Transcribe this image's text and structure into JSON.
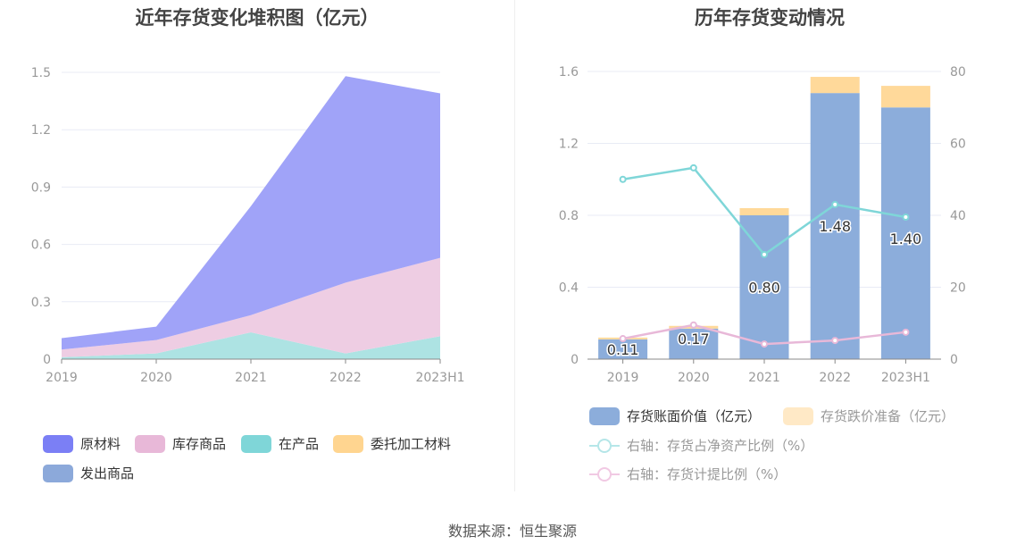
{
  "chart_data": [
    {
      "type": "area",
      "stacked": true,
      "title": "近年存货变化堆积图（亿元）",
      "categories": [
        "2019",
        "2020",
        "2021",
        "2022",
        "2023H1"
      ],
      "ylim": [
        0,
        1.5
      ],
      "yticks": [
        "0",
        "0.3",
        "0.6",
        "0.9",
        "1.2",
        "1.5"
      ],
      "series": [
        {
          "name": "在产品",
          "values": [
            0.01,
            0.03,
            0.14,
            0.03,
            0.12
          ],
          "color": "#7fd6d8",
          "fill": "#ade3e3"
        },
        {
          "name": "库存商品",
          "values": [
            0.04,
            0.07,
            0.09,
            0.37,
            0.41
          ],
          "color": "#e8b8d8",
          "fill": "#eecde3"
        },
        {
          "name": "原材料",
          "values": [
            0.06,
            0.07,
            0.57,
            1.08,
            0.86
          ],
          "color": "#7b7ff5",
          "fill": "#a0a3f8"
        },
        {
          "name": "委托加工材料",
          "values": [
            0,
            0,
            0,
            0,
            0
          ],
          "color": "#ffd590",
          "fill": "#ffd590"
        },
        {
          "name": "发出商品",
          "values": [
            0,
            0,
            0,
            0,
            0
          ],
          "color": "#8ca9da",
          "fill": "#8ca9da"
        }
      ],
      "legend_order": [
        "原材料",
        "库存商品",
        "在产品",
        "委托加工材料",
        "发出商品"
      ],
      "legend": "bottom"
    },
    {
      "type": "bar",
      "title": "历年存货变动情况",
      "categories": [
        "2019",
        "2020",
        "2021",
        "2022",
        "2023H1"
      ],
      "ylim": [
        0,
        1.6
      ],
      "yticks": [
        "0",
        "0.4",
        "0.8",
        "1.2",
        "1.6"
      ],
      "y2lim": [
        0,
        80
      ],
      "y2ticks": [
        "0",
        "20",
        "40",
        "60",
        "80"
      ],
      "bars": [
        {
          "name": "存货账面价值（亿元）",
          "values": [
            0.11,
            0.17,
            0.8,
            1.48,
            1.4
          ],
          "labels": [
            "0.11",
            "0.17",
            "0.80",
            "1.48",
            "1.40"
          ],
          "color": "#8caddb"
        },
        {
          "name": "存货跌价准备（亿元）",
          "values": [
            0.01,
            0.015,
            0.04,
            0.09,
            0.12
          ],
          "color": "#ffd99a"
        }
      ],
      "lines": [
        {
          "name": "右轴：存货占净资产比例（%）",
          "values": [
            50,
            53.2,
            29.1,
            43,
            39.5
          ],
          "color": "#7fd6d8"
        },
        {
          "name": "右轴：存货计提比例（%）",
          "values": [
            5.7,
            9.5,
            4.2,
            5.2,
            7.5
          ],
          "color": "#e8b8d8"
        }
      ],
      "legend": "bottom"
    }
  ],
  "source": "数据来源：恒生聚源"
}
